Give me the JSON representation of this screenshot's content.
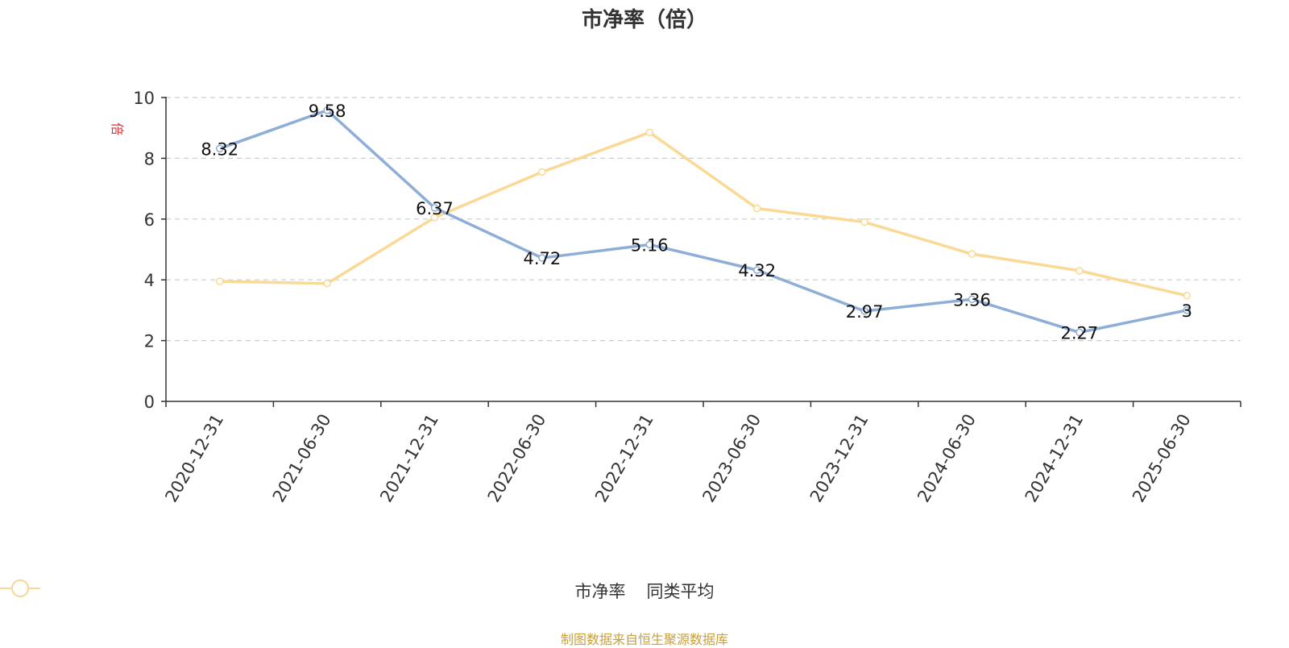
{
  "chart_data": {
    "type": "line",
    "title": "市净率（倍）",
    "ylabel": "倍",
    "ylim": [
      0,
      10
    ],
    "yticks": [
      0,
      2,
      4,
      6,
      8,
      10
    ],
    "categories": [
      "2020-12-31",
      "2021-06-30",
      "2021-12-31",
      "2022-06-30",
      "2022-12-31",
      "2023-06-30",
      "2023-12-31",
      "2024-06-30",
      "2024-12-31",
      "2025-06-30"
    ],
    "series": [
      {
        "name": "市净率",
        "color": "#8eaed8",
        "values": [
          8.32,
          9.58,
          6.37,
          4.72,
          5.16,
          4.32,
          2.97,
          3.36,
          2.27,
          3
        ],
        "labels": [
          "8.32",
          "9.58",
          "6.37",
          "4.72",
          "5.16",
          "4.32",
          "2.97",
          "3.36",
          "2.27",
          "3"
        ]
      },
      {
        "name": "同类平均",
        "color": "#fad995",
        "values": [
          3.95,
          3.88,
          6.05,
          7.55,
          8.85,
          6.35,
          5.9,
          4.85,
          4.3,
          3.48
        ]
      }
    ],
    "grid": true,
    "legend_position": "bottom",
    "source_note": "制图数据来自恒生聚源数据库"
  }
}
